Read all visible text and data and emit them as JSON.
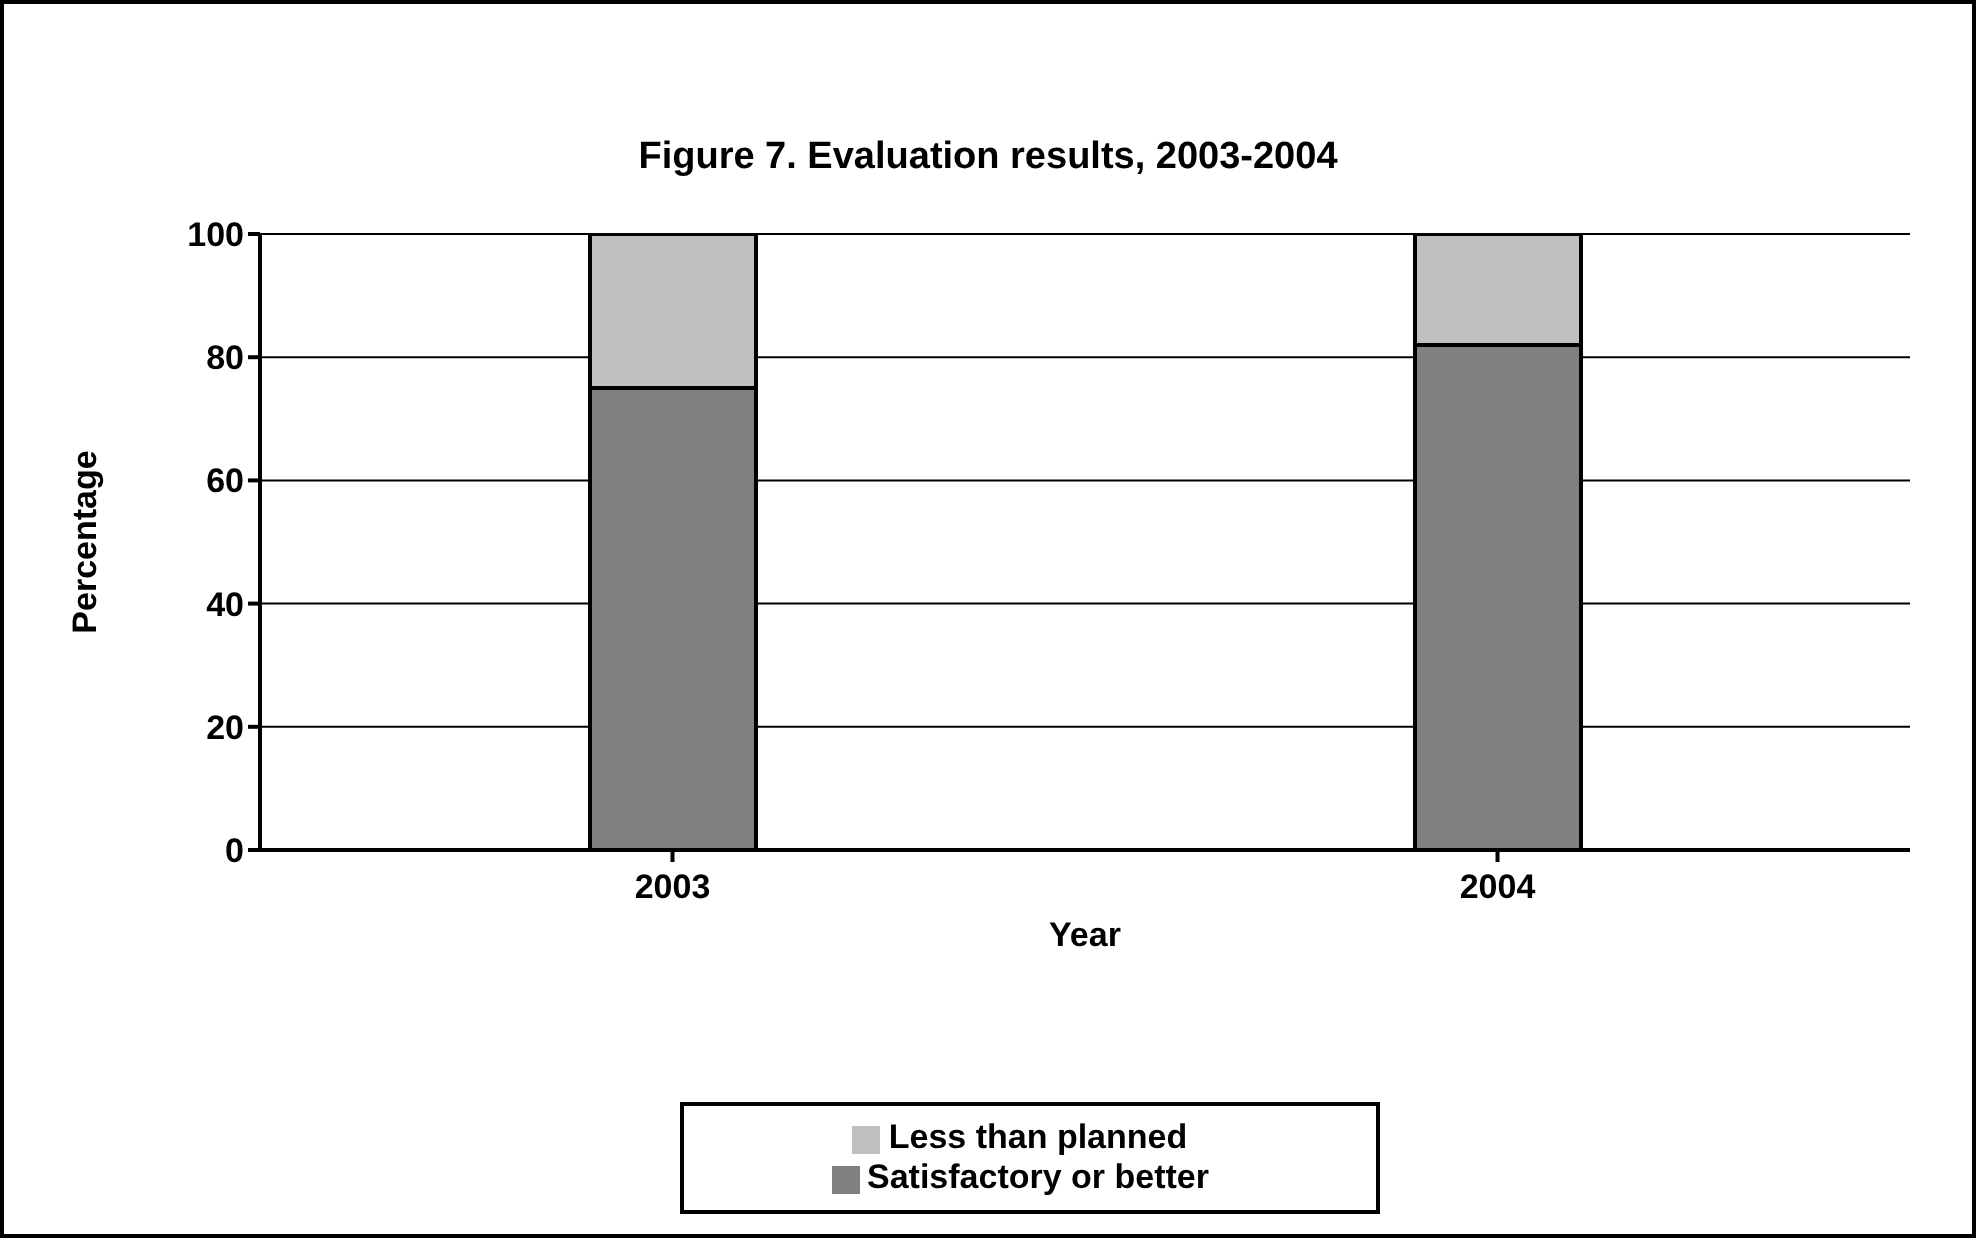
{
  "chart_data": {
    "type": "bar",
    "title": "Figure 7. Evaluation results, 2003-2004",
    "xlabel": "Year",
    "ylabel": "Percentage",
    "categories": [
      "2003",
      "2004"
    ],
    "series": [
      {
        "name": "Satisfactory or better",
        "color": "#808080",
        "values": [
          75,
          82
        ]
      },
      {
        "name": "Less than planned",
        "color": "#c0c0c0",
        "values": [
          25,
          18
        ]
      }
    ],
    "stacked": true,
    "ylim": [
      0,
      100
    ],
    "yticks": [
      0,
      20,
      40,
      60,
      80,
      100
    ],
    "grid": "y",
    "legend": "bottom"
  }
}
